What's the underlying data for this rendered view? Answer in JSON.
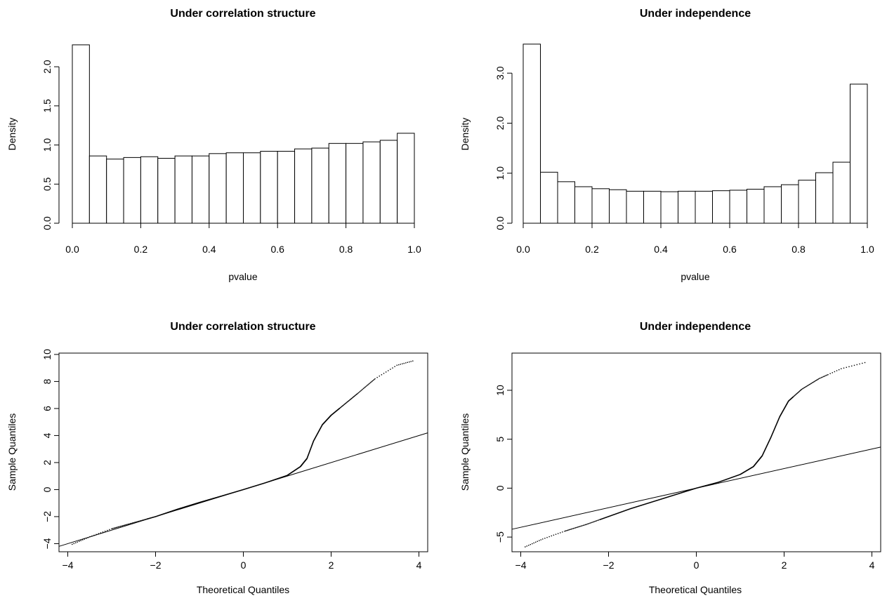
{
  "chart_data": [
    {
      "type": "histogram",
      "title": "Under correlation structure",
      "xlabel": "pvalue",
      "ylabel": "Density",
      "xlim": [
        0,
        1
      ],
      "ylim": [
        0,
        2.27
      ],
      "xticks": [
        "0.0",
        "0.2",
        "0.4",
        "0.6",
        "0.8",
        "1.0"
      ],
      "yticks": [
        "0.0",
        "0.5",
        "1.0",
        "1.5",
        "2.0"
      ],
      "bin_width": 0.05,
      "bin_starts": [
        0.0,
        0.05,
        0.1,
        0.15,
        0.2,
        0.25,
        0.3,
        0.35,
        0.4,
        0.45,
        0.5,
        0.55,
        0.6,
        0.65,
        0.7,
        0.75,
        0.8,
        0.85,
        0.9,
        0.95
      ],
      "values": [
        2.28,
        0.86,
        0.82,
        0.84,
        0.85,
        0.83,
        0.86,
        0.86,
        0.89,
        0.9,
        0.9,
        0.92,
        0.92,
        0.95,
        0.96,
        1.02,
        1.02,
        1.04,
        1.06,
        1.15
      ]
    },
    {
      "type": "histogram",
      "title": "Under independence",
      "xlabel": "pvalue",
      "ylabel": "Density",
      "xlim": [
        0,
        1
      ],
      "ylim": [
        0,
        3.55
      ],
      "xticks": [
        "0.0",
        "0.2",
        "0.4",
        "0.6",
        "0.8",
        "1.0"
      ],
      "yticks": [
        "0.0",
        "1.0",
        "2.0",
        "3.0"
      ],
      "bin_width": 0.05,
      "bin_starts": [
        0.0,
        0.05,
        0.1,
        0.15,
        0.2,
        0.25,
        0.3,
        0.35,
        0.4,
        0.45,
        0.5,
        0.55,
        0.6,
        0.65,
        0.7,
        0.75,
        0.8,
        0.85,
        0.9,
        0.95
      ],
      "values": [
        3.58,
        1.02,
        0.83,
        0.73,
        0.69,
        0.67,
        0.64,
        0.64,
        0.63,
        0.64,
        0.64,
        0.65,
        0.66,
        0.68,
        0.73,
        0.77,
        0.86,
        1.01,
        1.22,
        2.78
      ]
    },
    {
      "type": "scatter",
      "title": "Under correlation structure",
      "xlabel": "Theoretical Quantiles",
      "ylabel": "Sample Quantiles",
      "xlim": [
        -4.2,
        4.2
      ],
      "ylim": [
        -4.6,
        10.1
      ],
      "xticks": [
        "−4",
        "−2",
        "0",
        "2",
        "4"
      ],
      "yticks": [
        "−4",
        "−2",
        "0",
        "2",
        "4",
        "6",
        "8",
        "10"
      ],
      "reference_line": {
        "slope": 1.0,
        "intercept": 0.0
      },
      "curve_points": [
        [
          -3.9,
          -4.05
        ],
        [
          -3.5,
          -3.5
        ],
        [
          -3.0,
          -2.9
        ],
        [
          -2.5,
          -2.45
        ],
        [
          -2.0,
          -2.0
        ],
        [
          -1.5,
          -1.45
        ],
        [
          -1.0,
          -0.95
        ],
        [
          -0.5,
          -0.48
        ],
        [
          0.0,
          0.0
        ],
        [
          0.5,
          0.5
        ],
        [
          1.0,
          1.05
        ],
        [
          1.3,
          1.7
        ],
        [
          1.45,
          2.3
        ],
        [
          1.6,
          3.6
        ],
        [
          1.8,
          4.8
        ],
        [
          2.0,
          5.5
        ],
        [
          2.3,
          6.3
        ],
        [
          2.6,
          7.1
        ],
        [
          3.0,
          8.2
        ],
        [
          3.5,
          9.2
        ],
        [
          3.9,
          9.55
        ]
      ]
    },
    {
      "type": "scatter",
      "title": "Under independence",
      "xlabel": "Theoretical Quantiles",
      "ylabel": "Sample Quantiles",
      "xlim": [
        -4.2,
        4.2
      ],
      "ylim": [
        -6.5,
        13.8
      ],
      "xticks": [
        "−4",
        "−2",
        "0",
        "2",
        "4"
      ],
      "yticks": [
        "−5",
        "0",
        "5",
        "10"
      ],
      "reference_line": {
        "slope": 1.0,
        "intercept": 0.0
      },
      "curve_points": [
        [
          -3.9,
          -6.0
        ],
        [
          -3.5,
          -5.2
        ],
        [
          -3.0,
          -4.4
        ],
        [
          -2.5,
          -3.7
        ],
        [
          -2.0,
          -2.9
        ],
        [
          -1.5,
          -2.1
        ],
        [
          -1.0,
          -1.4
        ],
        [
          -0.5,
          -0.7
        ],
        [
          0.0,
          0.0
        ],
        [
          0.5,
          0.6
        ],
        [
          1.0,
          1.4
        ],
        [
          1.3,
          2.2
        ],
        [
          1.5,
          3.3
        ],
        [
          1.7,
          5.2
        ],
        [
          1.9,
          7.3
        ],
        [
          2.1,
          8.9
        ],
        [
          2.4,
          10.1
        ],
        [
          2.8,
          11.2
        ],
        [
          3.3,
          12.2
        ],
        [
          3.9,
          12.9
        ]
      ]
    }
  ]
}
